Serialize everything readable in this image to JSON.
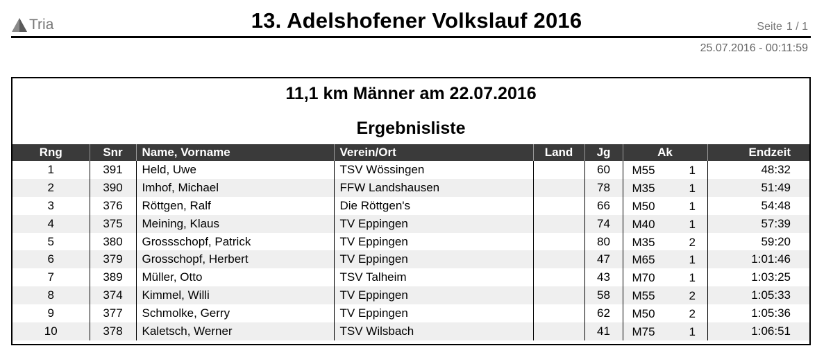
{
  "header": {
    "logo_text": "Tria",
    "title": "13. Adelshofener Volkslauf 2016",
    "page_label": "Seite",
    "page_value": "1 / 1",
    "timestamp": "25.07.2016  -  00:11:59"
  },
  "race": {
    "title": "11,1 km Männer  am  22.07.2016",
    "list_title": "Ergebnisliste"
  },
  "columns": {
    "rank": "Rng",
    "snr": "Snr",
    "name": "Name, Vorname",
    "club": "Verein/Ort",
    "land": "Land",
    "year": "Jg",
    "ak": "Ak",
    "time": "Endzeit"
  },
  "rows": [
    {
      "rank": "1",
      "snr": "391",
      "name": "Held, Uwe",
      "club": "TSV Wössingen",
      "land": "",
      "year": "60",
      "ak": "M55",
      "ak_place": "1",
      "time": "48:32"
    },
    {
      "rank": "2",
      "snr": "390",
      "name": "Imhof, Michael",
      "club": "FFW Landshausen",
      "land": "",
      "year": "78",
      "ak": "M35",
      "ak_place": "1",
      "time": "51:49"
    },
    {
      "rank": "3",
      "snr": "376",
      "name": "Röttgen, Ralf",
      "club": "Die Röttgen's",
      "land": "",
      "year": "66",
      "ak": "M50",
      "ak_place": "1",
      "time": "54:48"
    },
    {
      "rank": "4",
      "snr": "375",
      "name": "Meining, Klaus",
      "club": "TV Eppingen",
      "land": "",
      "year": "74",
      "ak": "M40",
      "ak_place": "1",
      "time": "57:39"
    },
    {
      "rank": "5",
      "snr": "380",
      "name": "Grossschopf, Patrick",
      "club": "TV Eppingen",
      "land": "",
      "year": "80",
      "ak": "M35",
      "ak_place": "2",
      "time": "59:20"
    },
    {
      "rank": "6",
      "snr": "379",
      "name": "Grosschopf, Herbert",
      "club": "TV Eppingen",
      "land": "",
      "year": "47",
      "ak": "M65",
      "ak_place": "1",
      "time": "1:01:46"
    },
    {
      "rank": "7",
      "snr": "389",
      "name": "Müller, Otto",
      "club": "TSV Talheim",
      "land": "",
      "year": "43",
      "ak": "M70",
      "ak_place": "1",
      "time": "1:03:25"
    },
    {
      "rank": "8",
      "snr": "374",
      "name": "Kimmel, Willi",
      "club": "TV Eppingen",
      "land": "",
      "year": "58",
      "ak": "M55",
      "ak_place": "2",
      "time": "1:05:33"
    },
    {
      "rank": "9",
      "snr": "377",
      "name": "Schmolke, Gerry",
      "club": "TV Eppingen",
      "land": "",
      "year": "62",
      "ak": "M50",
      "ak_place": "2",
      "time": "1:05:36"
    },
    {
      "rank": "10",
      "snr": "378",
      "name": "Kaletsch, Werner",
      "club": "TSV Wilsbach",
      "land": "",
      "year": "41",
      "ak": "M75",
      "ak_place": "1",
      "time": "1:06:51"
    }
  ]
}
